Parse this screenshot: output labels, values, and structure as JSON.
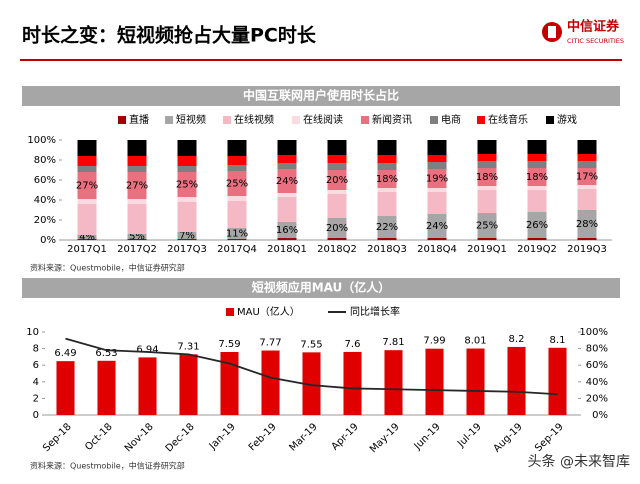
{
  "header": {
    "title": "时长之变：短视频抢占大量PC时长",
    "logo": {
      "name": "中信证券",
      "en": "CITIC SECURITIES"
    }
  },
  "chart_data": [
    {
      "type": "stacked_bar",
      "title": "中国互联网用户使用时长占比",
      "source": "资料来源：Questmobile，中信证券研究部",
      "categories": [
        "2017Q1",
        "2017Q2",
        "2017Q3",
        "2017Q4",
        "2018Q1",
        "2018Q2",
        "2018Q3",
        "2018Q4",
        "2019Q1",
        "2019Q2",
        "2019Q3"
      ],
      "series": [
        {
          "name": "直播",
          "color": "#a50000",
          "values": [
            1,
            1,
            1,
            1,
            2,
            2,
            2,
            2,
            2,
            2,
            2
          ]
        },
        {
          "name": "短视频",
          "color": "#a6a6a6",
          "values": [
            4,
            5,
            7,
            11,
            16,
            20,
            22,
            24,
            25,
            26,
            28
          ],
          "value_labels": [
            "4%",
            "5%",
            "7%",
            "11%",
            "16%",
            "20%",
            "22%",
            "24%",
            "25%",
            "26%",
            "28%"
          ]
        },
        {
          "name": "在线视频",
          "color": "#f4b9c4",
          "values": [
            31,
            30,
            30,
            27,
            25,
            24,
            24,
            22,
            23,
            22,
            21
          ]
        },
        {
          "name": "在线阅读",
          "color": "#fadbe1",
          "values": [
            5,
            5,
            5,
            5,
            4,
            4,
            4,
            4,
            4,
            4,
            4
          ]
        },
        {
          "name": "新闻资讯",
          "color": "#e8707f",
          "values": [
            27,
            27,
            25,
            25,
            24,
            20,
            18,
            19,
            18,
            18,
            17
          ],
          "value_labels": [
            "27%",
            "27%",
            "25%",
            "25%",
            "24%",
            "20%",
            "18%",
            "19%",
            "18%",
            "18%",
            "17%"
          ]
        },
        {
          "name": "电商",
          "color": "#7f7f7f",
          "values": [
            6,
            6,
            6,
            6,
            6,
            7,
            7,
            7,
            7,
            7,
            7
          ]
        },
        {
          "name": "在线音乐",
          "color": "#ff0000",
          "values": [
            10,
            10,
            10,
            9,
            8,
            8,
            8,
            7,
            7,
            7,
            7
          ]
        },
        {
          "name": "游戏",
          "color": "#000000",
          "values": [
            16,
            16,
            16,
            16,
            15,
            15,
            15,
            15,
            14,
            14,
            14
          ]
        }
      ],
      "ylim": [
        0,
        100
      ],
      "yticks": [
        {
          "value": 0,
          "label": "0%"
        },
        {
          "value": 20,
          "label": "20%"
        },
        {
          "value": 40,
          "label": "40%"
        },
        {
          "value": 60,
          "label": "60%"
        },
        {
          "value": 80,
          "label": "80%"
        },
        {
          "value": 100,
          "label": "100%"
        }
      ]
    },
    {
      "type": "bar_line",
      "title": "短视频应用MAU（亿人）",
      "source": "资料来源：Questmobile，中信证券研究部",
      "categories": [
        "Sep-18",
        "Oct-18",
        "Nov-18",
        "Dec-18",
        "Jan-19",
        "Feb-19",
        "Mar-19",
        "Apr-19",
        "May-19",
        "Jun-19",
        "Jul-19",
        "Aug-19",
        "Sep-19"
      ],
      "series": [
        {
          "name": "MAU（亿人）",
          "color": "#e00000",
          "type": "bar",
          "values": [
            6.49,
            6.53,
            6.94,
            7.31,
            7.59,
            7.77,
            7.55,
            7.6,
            7.81,
            7.99,
            8.01,
            8.2,
            8.1
          ]
        },
        {
          "name": "同比增长率",
          "color": "#262626",
          "type": "line",
          "axis": "y2",
          "values": [
            92,
            78,
            76,
            73,
            62,
            45,
            36,
            32,
            31,
            30,
            29,
            28,
            25
          ]
        }
      ],
      "ylim": [
        0,
        10
      ],
      "yticks": [
        0,
        2,
        4,
        6,
        8,
        10
      ],
      "y2lim": [
        0,
        100
      ],
      "y2ticks": [
        {
          "value": 0,
          "label": "0%"
        },
        {
          "value": 20,
          "label": "20%"
        },
        {
          "value": 40,
          "label": "40%"
        },
        {
          "value": 60,
          "label": "60%"
        },
        {
          "value": 80,
          "label": "80%"
        },
        {
          "value": 100,
          "label": "100%"
        }
      ]
    }
  ],
  "watermark": "头条 @未来智库"
}
